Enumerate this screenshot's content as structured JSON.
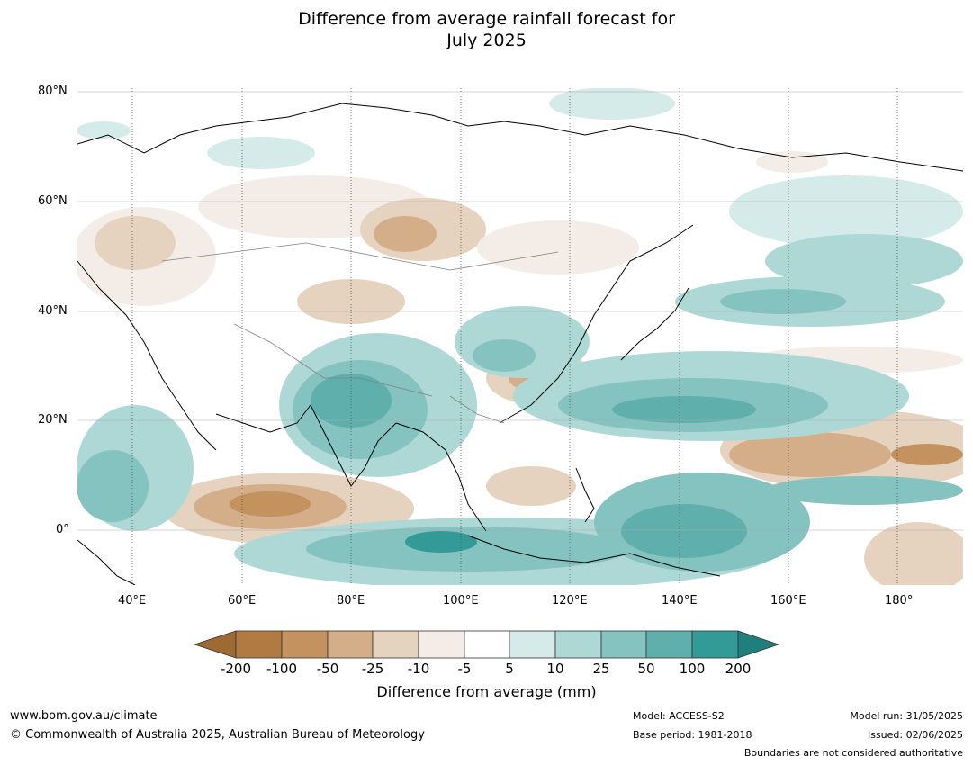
{
  "title_line1": "Difference from average rainfall forecast for",
  "title_line2": "July 2025",
  "map": {
    "lat_labels": [
      "80°N",
      "60°N",
      "40°N",
      "20°N",
      "0°"
    ],
    "lon_labels": [
      "40°E",
      "60°E",
      "80°E",
      "100°E",
      "120°E",
      "140°E",
      "160°E",
      "180°"
    ],
    "land_color": "#ffffff",
    "gridline_color": "#aaaaaa"
  },
  "colorbar": {
    "tick_labels": [
      "-200",
      "-100",
      "-50",
      "-25",
      "-10",
      "-5",
      "5",
      "10",
      "25",
      "50",
      "100",
      "200"
    ],
    "colors": [
      "#9e6a33",
      "#b07a42",
      "#c3925f",
      "#d4ae88",
      "#e5d2bf",
      "#f4ede7",
      "#ffffff",
      "#d5ebe9",
      "#aed8d6",
      "#85c3c0",
      "#5fb0ad",
      "#339a97",
      "#1f7f7d"
    ],
    "title": "Difference from average (mm)"
  },
  "footer": {
    "website": "www.bom.gov.au/climate",
    "copyright": "© Commonwealth of Australia 2025, Australian Bureau of Meteorology",
    "model": "Model: ACCESS-S2",
    "base_period": "Base period: 1981-2018",
    "model_run": "Model run: 31/05/2025",
    "issued": "Issued: 02/06/2025",
    "disclaimer": "Boundaries are not considered authoritative"
  }
}
